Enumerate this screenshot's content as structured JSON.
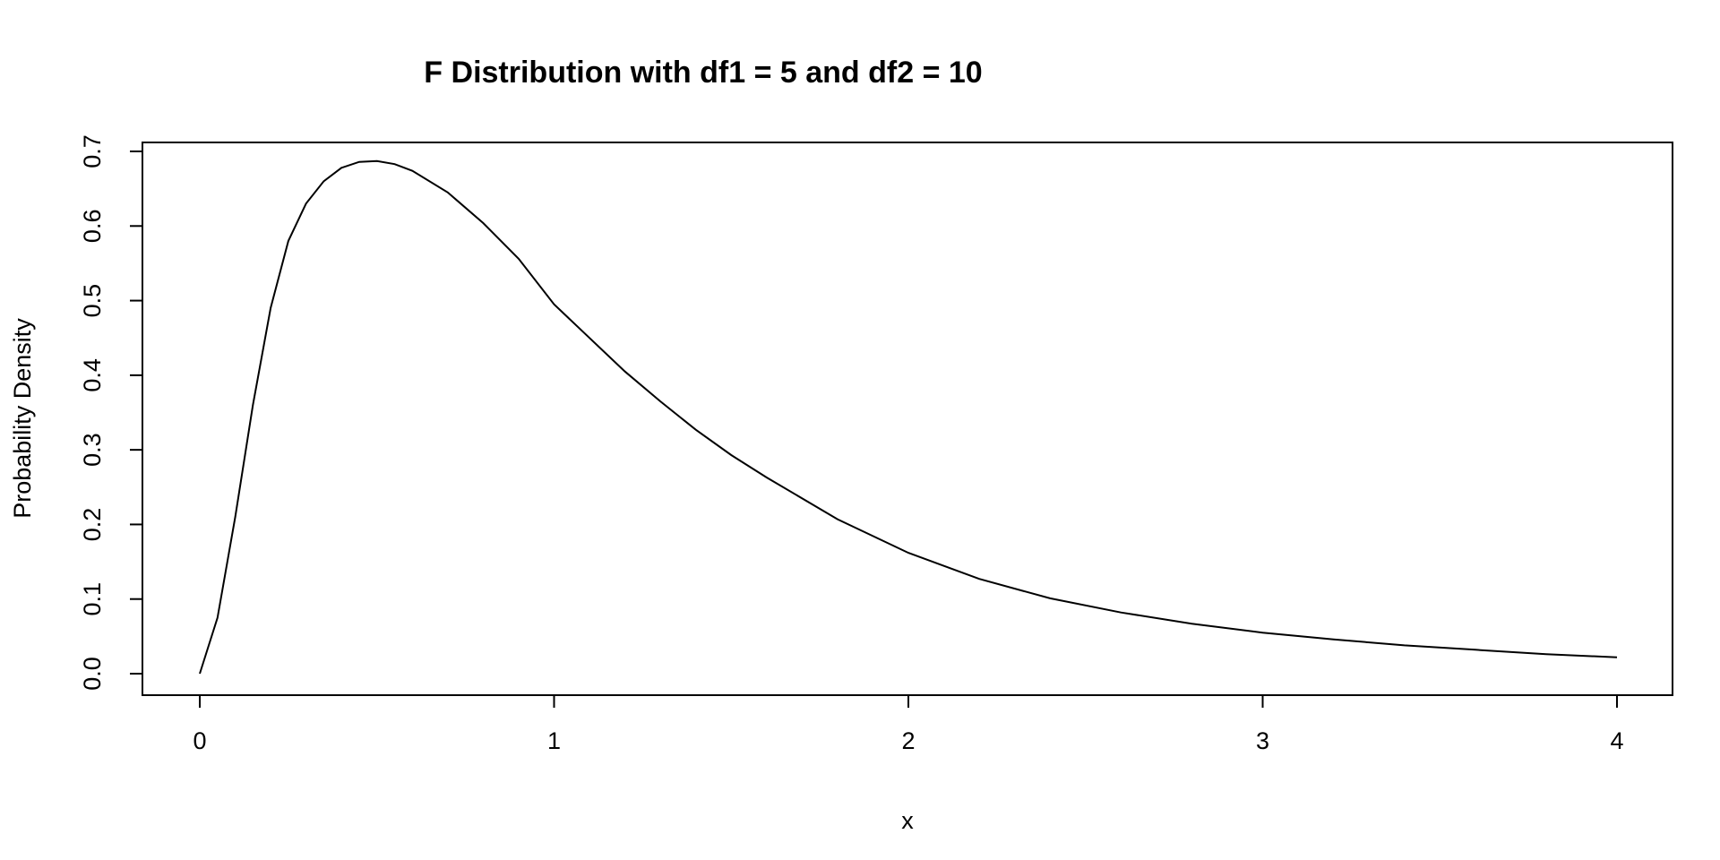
{
  "chart_data": {
    "type": "line",
    "title": "F Distribution with df1 = 5 and df2 = 10",
    "xlabel": "x",
    "ylabel": "Probability Density",
    "xlim": [
      0,
      4
    ],
    "ylim": [
      0,
      0.7
    ],
    "grid": false,
    "xticks": [
      0,
      1,
      2,
      3,
      4
    ],
    "xtick_labels": [
      "0",
      "1",
      "2",
      "3",
      "4"
    ],
    "yticks": [
      0,
      0.1,
      0.2,
      0.3,
      0.4,
      0.5,
      0.6,
      0.7
    ],
    "ytick_labels": [
      "0.0",
      "0.1",
      "0.2",
      "0.3",
      "0.4",
      "0.5",
      "0.6",
      "0.7"
    ],
    "series": [
      {
        "line_color": "#000000",
        "x": [
          0,
          0.05,
          0.1,
          0.15,
          0.2,
          0.25,
          0.3,
          0.35,
          0.4,
          0.45,
          0.5,
          0.55,
          0.6,
          0.7,
          0.8,
          0.9,
          1.0,
          1.1,
          1.2,
          1.3,
          1.4,
          1.5,
          1.6,
          1.8,
          2.0,
          2.2,
          2.4,
          2.6,
          2.8,
          3.0,
          3.2,
          3.4,
          3.6,
          3.8,
          4.0
        ],
        "y": [
          0,
          0.075,
          0.21,
          0.36,
          0.49,
          0.58,
          0.63,
          0.66,
          0.678,
          0.686,
          0.687,
          0.683,
          0.674,
          0.645,
          0.604,
          0.556,
          0.495,
          0.45,
          0.405,
          0.365,
          0.327,
          0.293,
          0.263,
          0.207,
          0.162,
          0.127,
          0.101,
          0.082,
          0.067,
          0.055,
          0.046,
          0.038,
          0.032,
          0.026,
          0.022
        ]
      }
    ]
  }
}
